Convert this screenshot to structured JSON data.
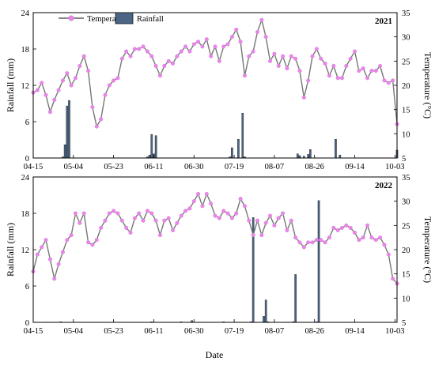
{
  "figure": {
    "xlabel": "Date",
    "legend": {
      "temperature": "Temperature",
      "rainfall": "Rainfall"
    },
    "colors": {
      "temperature_line": "#777777",
      "temperature_marker": "#ee82ee",
      "rainfall_bar": "#4a6585",
      "rainfall_bar_stroke": "#1a1a1a"
    }
  },
  "chart_data": [
    {
      "type": "line",
      "panel_label": "2021",
      "x_tick_labels": [
        "04-15",
        "05-04",
        "05-23",
        "06-11",
        "06-30",
        "07-19",
        "08-07",
        "08-26",
        "09-14",
        "10-03"
      ],
      "x_tick_days": [
        0,
        19,
        38,
        57,
        76,
        95,
        114,
        133,
        152,
        171
      ],
      "xlim": [
        0,
        172
      ],
      "ylabel": "Rainfall (mm)",
      "ylim": [
        0,
        24
      ],
      "yticks": [
        0,
        6,
        12,
        18,
        24
      ],
      "y2label": "Temperature (°C)",
      "y2lim": [
        5,
        35
      ],
      "y2ticks": [
        5,
        10,
        15,
        20,
        25,
        30,
        35
      ],
      "series": [
        {
          "name": "Temperature",
          "kind": "line",
          "axis": "right",
          "x": [
            0,
            2,
            4,
            6,
            8,
            10,
            12,
            14,
            16,
            18,
            20,
            22,
            24,
            26,
            28,
            30,
            32,
            34,
            36,
            38,
            40,
            42,
            44,
            46,
            48,
            50,
            52,
            54,
            56,
            58,
            60,
            62,
            64,
            66,
            68,
            70,
            72,
            74,
            76,
            78,
            80,
            82,
            84,
            86,
            88,
            90,
            92,
            94,
            96,
            98,
            100,
            102,
            104,
            106,
            108,
            110,
            112,
            114,
            116,
            118,
            120,
            122,
            124,
            126,
            128,
            130,
            132,
            134,
            136,
            138,
            140,
            142,
            144,
            146,
            148,
            150,
            152,
            154,
            156,
            158,
            160,
            162,
            164,
            166,
            168,
            170,
            172
          ],
          "y": [
            18.5,
            19,
            20.5,
            18,
            14.5,
            17,
            19,
            21,
            22.5,
            20,
            21.5,
            24,
            26,
            23,
            15.5,
            11.5,
            13,
            18,
            20,
            21,
            21.5,
            25.5,
            27,
            26,
            27.5,
            27.5,
            28,
            27,
            26,
            24,
            22,
            24,
            25,
            24.5,
            26,
            27,
            28,
            27,
            28.5,
            29,
            28,
            29.5,
            26,
            28,
            25,
            28,
            28.5,
            30,
            31.5,
            29,
            22,
            26,
            27,
            31,
            33.5,
            30,
            25,
            26.5,
            24,
            26,
            23.5,
            26,
            25.5,
            23,
            17.5,
            21,
            26,
            27.5,
            25.5,
            24.5,
            22,
            24,
            21.5,
            21.5,
            24,
            25.5,
            27,
            23,
            23.5,
            21.5,
            23,
            23,
            24,
            21,
            20.5,
            21,
            12
          ]
        },
        {
          "name": "Rainfall",
          "kind": "bar",
          "axis": "left",
          "x": [
            14,
            15,
            16,
            17,
            54,
            55,
            56,
            57,
            58,
            93,
            94,
            97,
            99,
            100,
            125,
            126,
            128,
            130,
            131,
            143,
            145,
            172
          ],
          "y": [
            0.2,
            2.2,
            8.6,
            9.5,
            0.2,
            0.5,
            3.9,
            0.7,
            3.7,
            0.2,
            1.7,
            3.1,
            7.4,
            0.2,
            0.7,
            0.4,
            0.3,
            0.6,
            1.4,
            3.1,
            0.5,
            1.3
          ]
        }
      ]
    },
    {
      "type": "line",
      "panel_label": "2022",
      "x_tick_labels": [
        "04-15",
        "05-04",
        "05-23",
        "06-11",
        "06-30",
        "07-19",
        "08-07",
        "08-26",
        "09-14",
        "10-03"
      ],
      "x_tick_days": [
        0,
        19,
        38,
        57,
        76,
        95,
        114,
        133,
        152,
        171
      ],
      "xlim": [
        0,
        172
      ],
      "ylabel": "Rainfall (mm)",
      "ylim": [
        0,
        24
      ],
      "yticks": [
        0,
        6,
        12,
        18,
        24
      ],
      "y2label": "Temperature (°C)",
      "y2lim": [
        5,
        35
      ],
      "y2ticks": [
        5,
        10,
        15,
        20,
        25,
        30,
        35
      ],
      "series": [
        {
          "name": "Temperature",
          "kind": "line",
          "axis": "right",
          "x": [
            0,
            2,
            4,
            6,
            8,
            10,
            12,
            14,
            16,
            18,
            20,
            22,
            24,
            26,
            28,
            30,
            32,
            34,
            36,
            38,
            40,
            42,
            44,
            46,
            48,
            50,
            52,
            54,
            56,
            58,
            60,
            62,
            64,
            66,
            68,
            70,
            72,
            74,
            76,
            78,
            80,
            82,
            84,
            86,
            88,
            90,
            92,
            94,
            96,
            98,
            100,
            102,
            104,
            106,
            108,
            110,
            112,
            114,
            116,
            118,
            120,
            122,
            124,
            126,
            128,
            130,
            132,
            134,
            136,
            138,
            140,
            142,
            144,
            146,
            148,
            150,
            152,
            154,
            156,
            158,
            160,
            162,
            164,
            166,
            168,
            170,
            172
          ],
          "y": [
            15.5,
            19,
            20.5,
            22,
            18,
            14,
            17,
            19.5,
            22,
            23,
            27.5,
            25.5,
            27.5,
            21.5,
            21,
            22,
            24.5,
            26,
            27.5,
            28,
            27.5,
            26,
            24.5,
            23.5,
            26.5,
            27.5,
            26,
            28,
            27.5,
            26,
            23,
            26,
            26.5,
            24,
            25.5,
            27,
            28,
            28.5,
            30,
            31.5,
            29,
            31.5,
            29.5,
            27,
            26.5,
            28,
            27.5,
            26.5,
            27.5,
            30.5,
            29,
            26,
            23,
            26,
            23,
            25.5,
            27,
            25,
            26.5,
            27.5,
            24,
            26,
            22.5,
            21.5,
            20.5,
            21.5,
            21.5,
            22,
            22,
            21.5,
            22.5,
            24.5,
            24,
            24.5,
            25,
            24.5,
            23.5,
            22,
            22.5,
            25,
            22.5,
            22,
            22.5,
            21,
            19,
            14,
            13
          ]
        },
        {
          "name": "Rainfall",
          "kind": "bar",
          "axis": "left",
          "x": [
            13,
            56,
            70,
            75,
            90,
            103,
            104,
            109,
            110,
            111,
            123,
            124,
            134,
            135
          ],
          "y": [
            0.1,
            0.1,
            0.1,
            0.3,
            0.1,
            0.1,
            17.3,
            1.0,
            3.7,
            0.1,
            0.1,
            7.9,
            0.1,
            20.1
          ]
        }
      ]
    }
  ]
}
